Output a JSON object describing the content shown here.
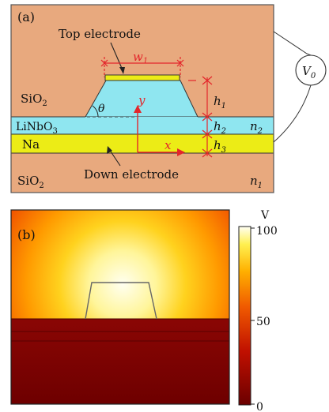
{
  "panel_a": {
    "label": "(a)",
    "top_electrode": "Top electrode",
    "down_electrode": "Down electrode",
    "w_symbol": "w",
    "w_sub": "1",
    "theta": "θ",
    "y_axis": "y",
    "x_axis": "x",
    "sio2_top_main": "SiO",
    "sio2_top_sub": "2",
    "sio2_bot_main": "SiO",
    "sio2_bot_sub": "2",
    "linbo3_main": "LiNbO",
    "linbo3_sub": "3",
    "na": "Na",
    "h1_main": "h",
    "h1_sub": "1",
    "h2_main": "h",
    "h2_sub": "2",
    "h3_main": "h",
    "h3_sub": "3",
    "n2_main": "n",
    "n2_sub": "2",
    "n1_main": "n",
    "n1_sub": "1",
    "v0_main": "V",
    "v0_sub": "0",
    "colors": {
      "sio2": "#e8a97e",
      "linbo3": "#8fe6f0",
      "na": "#ecec16",
      "red": "#e3262b"
    }
  },
  "panel_b": {
    "label": "(b)",
    "colorbar_unit": "V",
    "ticks": [
      "100",
      "50",
      "0"
    ],
    "scale_min": 0,
    "scale_max": 100
  }
}
